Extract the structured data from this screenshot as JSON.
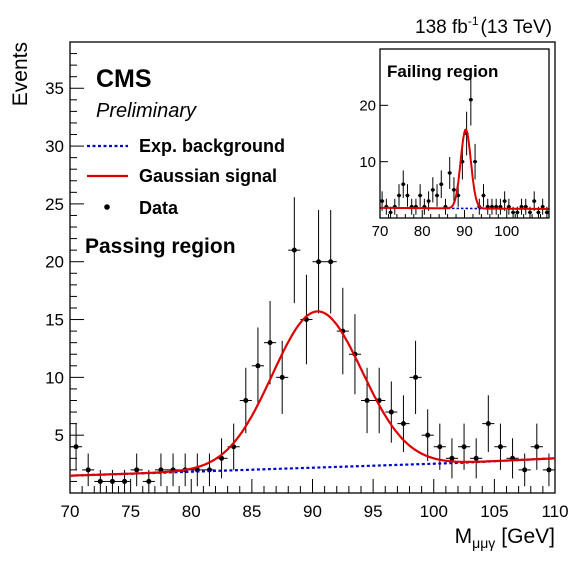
{
  "header": {
    "lumi": "138 fb",
    "lumi_exp": "-1",
    "energy": "(13 TeV)"
  },
  "labels": {
    "experiment": "CMS",
    "status": "Preliminary",
    "region_main": "Passing region",
    "region_inset": "Failing region"
  },
  "legend": {
    "entries": [
      {
        "label": "Exp. background",
        "style": "dotted",
        "color": "#0000cc"
      },
      {
        "label": "Gaussian signal",
        "style": "solid",
        "color": "#dd0000"
      },
      {
        "label": "Data",
        "style": "marker",
        "color": "#000000"
      }
    ]
  },
  "colors": {
    "background_line": "#0000cc",
    "signal_line": "#dd0000",
    "data": "#000000"
  },
  "chart_data": [
    {
      "type": "scatter",
      "name": "Passing region",
      "xlabel": "M",
      "xlabel_sub": "μμγ",
      "xlabel_unit": "[GeV]",
      "ylabel": "Events",
      "xlim": [
        70,
        110
      ],
      "ylim": [
        0,
        39
      ],
      "xticks": [
        70,
        75,
        80,
        85,
        90,
        95,
        100,
        105,
        110
      ],
      "yticks": [
        5,
        10,
        15,
        20,
        25,
        30,
        35
      ],
      "legend_position": "top-left",
      "data": {
        "x": [
          70.5,
          71.5,
          72.5,
          73.5,
          74.5,
          75.5,
          76.5,
          77.5,
          78.5,
          79.5,
          80.5,
          81.5,
          82.5,
          83.5,
          84.5,
          85.5,
          86.5,
          87.5,
          88.5,
          89.5,
          90.5,
          91.5,
          92.5,
          93.5,
          94.5,
          95.5,
          96.5,
          97.5,
          98.5,
          99.5,
          100.5,
          101.5,
          102.5,
          103.5,
          104.5,
          105.5,
          106.5,
          107.5,
          108.5,
          109.5
        ],
        "y": [
          4,
          2,
          1,
          1,
          1,
          2,
          1,
          2,
          2,
          2,
          2,
          2,
          3,
          4,
          8,
          11,
          13,
          10,
          21,
          15,
          20,
          20,
          14,
          12,
          8,
          8,
          7,
          6,
          10,
          5,
          4,
          3,
          4,
          3,
          6,
          4,
          3,
          2,
          4,
          2
        ]
      },
      "background": {
        "x": [
          70,
          102,
          110
        ],
        "y": [
          1.5,
          2.6,
          3.0
        ]
      },
      "signal": {
        "mean": 90.4,
        "sigma": 3.7,
        "amplitude": 13.5
      }
    },
    {
      "type": "scatter",
      "name": "Failing region",
      "xlim": [
        70,
        110
      ],
      "ylim": [
        0,
        30
      ],
      "xticks": [
        70,
        80,
        90,
        100
      ],
      "yticks": [
        10,
        20
      ],
      "data": {
        "x": [
          70.5,
          71.5,
          72.5,
          73.5,
          74.5,
          75.5,
          76.5,
          77.5,
          78.5,
          79.5,
          80.5,
          81.5,
          82.5,
          83.5,
          84.5,
          85.5,
          86.5,
          87.5,
          88.5,
          89.5,
          90.5,
          91.5,
          92.5,
          93.5,
          94.5,
          95.5,
          96.5,
          97.5,
          98.5,
          99.5,
          100.5,
          101.5,
          102.5,
          103.5,
          104.5,
          105.5,
          106.5,
          107.5,
          108.5,
          109.5
        ],
        "y": [
          3,
          2,
          1,
          2,
          4,
          6,
          4,
          2,
          2,
          4,
          2,
          3,
          5,
          4,
          6,
          2,
          8,
          5,
          4,
          10,
          15,
          21,
          10,
          2,
          4,
          2,
          2,
          2,
          2,
          3,
          2,
          1,
          1,
          2,
          2,
          1,
          3,
          1,
          2,
          1
        ]
      },
      "background": {
        "x": [
          70,
          110
        ],
        "y": [
          1.8,
          1.6
        ]
      },
      "signal": {
        "mean": 90.3,
        "sigma": 1.2,
        "amplitude": 14
      }
    }
  ]
}
